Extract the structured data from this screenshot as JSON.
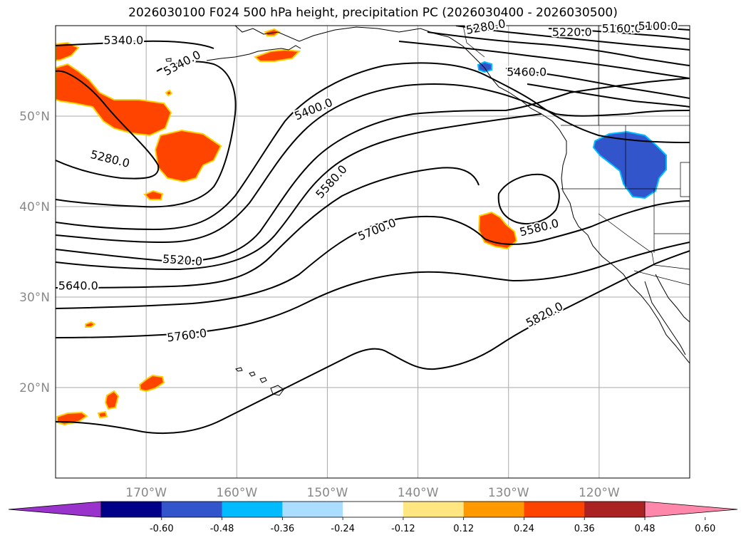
{
  "title": "2026030100 F024 500 hPa height, precipitation PC (2026030400 - 2026030500)",
  "colors": {
    "contour": "#000000",
    "grid": "#aaaaaa",
    "land_outline": "#000000",
    "precip_positive_fill": "#ff4400",
    "precip_positive_edge": "#ffd000",
    "precip_negative_fill": "#3355cc",
    "precip_negative_edge": "#00bbff"
  },
  "chart_data": {
    "type": "contour_map",
    "title": "2026030100 F024 500 hPa height, precipitation PC (2026030400 - 2026030500)",
    "xlabel": "",
    "ylabel": "",
    "lon_range": [
      -180,
      -110
    ],
    "lat_range": [
      10,
      60
    ],
    "grid": true,
    "x_ticks": [
      {
        "value": -170,
        "label": "170°W"
      },
      {
        "value": -160,
        "label": "160°W"
      },
      {
        "value": -150,
        "label": "150°W"
      },
      {
        "value": -140,
        "label": "140°W"
      },
      {
        "value": -130,
        "label": "130°W"
      },
      {
        "value": -120,
        "label": "120°W"
      }
    ],
    "y_ticks": [
      {
        "value": 20,
        "label": "20°N"
      },
      {
        "value": 30,
        "label": "30°N"
      },
      {
        "value": 40,
        "label": "40°N"
      },
      {
        "value": 50,
        "label": "50°N"
      }
    ],
    "contour_interval": 60,
    "contour_labels": [
      {
        "text": "5340.0",
        "lon": -172.5,
        "lat": 58.3,
        "angle": 0
      },
      {
        "text": "5340.0",
        "lon": -166.0,
        "lat": 55.8,
        "angle": -28
      },
      {
        "text": "5280.0",
        "lon": -174.0,
        "lat": 45.2,
        "angle": 14
      },
      {
        "text": "5400.0",
        "lon": -151.5,
        "lat": 50.7,
        "angle": -22
      },
      {
        "text": "5580.0",
        "lon": -149.5,
        "lat": 42.7,
        "angle": -48
      },
      {
        "text": "5700.0",
        "lon": -144.5,
        "lat": 37.4,
        "angle": -22
      },
      {
        "text": "5580.0",
        "lon": -126.6,
        "lat": 37.6,
        "angle": -14
      },
      {
        "text": "5520.0",
        "lon": -166.0,
        "lat": 34.0,
        "angle": 4
      },
      {
        "text": "5640.0",
        "lon": -177.5,
        "lat": 31.2,
        "angle": 0
      },
      {
        "text": "5760.0",
        "lon": -165.5,
        "lat": 25.7,
        "angle": -7
      },
      {
        "text": "5820.0",
        "lon": -126.0,
        "lat": 28.0,
        "angle": -28
      },
      {
        "text": "5280.0",
        "lon": -132.5,
        "lat": 59.8,
        "angle": -10
      },
      {
        "text": "5220.0",
        "lon": -123.0,
        "lat": 59.2,
        "angle": 0
      },
      {
        "text": "5160.0",
        "lon": -117.5,
        "lat": 59.6,
        "angle": 0
      },
      {
        "text": "5100.0",
        "lon": -113.5,
        "lat": 59.9,
        "angle": 0
      },
      {
        "text": "5460.0",
        "lon": -128.0,
        "lat": 54.8,
        "angle": 0
      }
    ],
    "precip_regions": [
      {
        "sign": "positive",
        "region": "Bering Sea / western Aleutians"
      },
      {
        "sign": "positive",
        "region": "south of Alaska Peninsula"
      },
      {
        "sign": "positive",
        "region": "Gulf of Alaska coast"
      },
      {
        "sign": "positive",
        "region": "offshore California near 38N 132W"
      },
      {
        "sign": "positive",
        "region": "Hawaiian Islands vicinity"
      },
      {
        "sign": "negative",
        "region": "Interior Northwest US near 45N 115W"
      },
      {
        "sign": "negative",
        "region": "Southeast Alaska coast"
      }
    ],
    "colorbar": {
      "orientation": "horizontal",
      "extend": "both",
      "colors": [
        "#9933cc",
        "#000088",
        "#3355cc",
        "#00bbff",
        "#aaddff",
        "#ffffff",
        "#ffe680",
        "#ff9900",
        "#ff4400",
        "#aa2222",
        "#ff88aa"
      ],
      "ticks": [
        "-0.60",
        "-0.48",
        "-0.36",
        "-0.24",
        "-0.12",
        "0.12",
        "0.24",
        "0.36",
        "0.48",
        "0.60"
      ]
    }
  }
}
